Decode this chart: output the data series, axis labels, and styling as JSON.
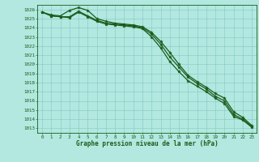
{
  "title": "Graphe pression niveau de la mer (hPa)",
  "background_color": "#b2e8e0",
  "grid_color": "#80c8c0",
  "line_color": "#1a5c1a",
  "x_labels": [
    "0",
    "1",
    "2",
    "3",
    "4",
    "5",
    "6",
    "7",
    "8",
    "9",
    "10",
    "11",
    "12",
    "13",
    "14",
    "15",
    "16",
    "17",
    "18",
    "19",
    "20",
    "21",
    "22",
    "23"
  ],
  "ylim_min": 1012.5,
  "ylim_max": 1026.5,
  "yticks": [
    1013,
    1014,
    1015,
    1016,
    1017,
    1018,
    1019,
    1020,
    1021,
    1022,
    1023,
    1024,
    1025,
    1026
  ],
  "line1": [
    1025.7,
    1025.3,
    1025.2,
    1025.2,
    1025.8,
    1025.3,
    1024.8,
    1024.5,
    1024.4,
    1024.3,
    1024.2,
    1024.0,
    1023.3,
    1022.2,
    1020.8,
    1019.7,
    1018.6,
    1017.9,
    1017.3,
    1016.5,
    1016.0,
    1014.5,
    1014.0,
    1013.2
  ],
  "line2": [
    1025.7,
    1025.3,
    1025.2,
    1025.1,
    1025.7,
    1025.2,
    1024.7,
    1024.4,
    1024.3,
    1024.2,
    1024.1,
    1023.9,
    1023.0,
    1021.8,
    1020.3,
    1019.2,
    1018.2,
    1017.6,
    1017.0,
    1016.3,
    1015.7,
    1014.3,
    1013.9,
    1013.1
  ],
  "line3": [
    1025.7,
    1025.4,
    1025.3,
    1025.9,
    1026.2,
    1025.9,
    1025.0,
    1024.7,
    1024.5,
    1024.4,
    1024.3,
    1024.1,
    1023.5,
    1022.5,
    1021.3,
    1020.0,
    1018.8,
    1018.1,
    1017.5,
    1016.8,
    1016.3,
    1014.8,
    1014.2,
    1013.3
  ],
  "tick_fontsize": 4.2,
  "label_fontsize": 5.5,
  "line_width": 0.9,
  "marker_size": 2.8
}
